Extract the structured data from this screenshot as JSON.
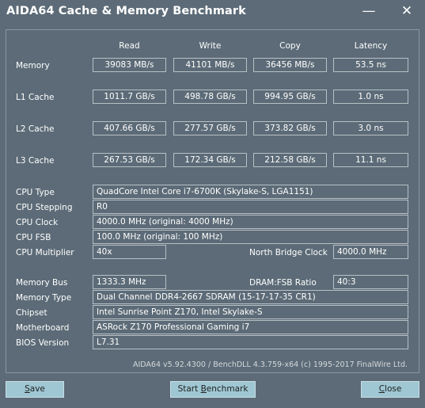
{
  "window": {
    "title": "AIDA64 Cache & Memory Benchmark",
    "minimize_glyph": "—",
    "close_glyph": "✕"
  },
  "headers": {
    "read": "Read",
    "write": "Write",
    "copy": "Copy",
    "latency": "Latency"
  },
  "bench": {
    "memory": {
      "label": "Memory",
      "read": "39083 MB/s",
      "write": "41101 MB/s",
      "copy": "36456 MB/s",
      "latency": "53.5 ns"
    },
    "l1": {
      "label": "L1 Cache",
      "read": "1011.7 GB/s",
      "write": "498.78 GB/s",
      "copy": "994.95 GB/s",
      "latency": "1.0 ns"
    },
    "l2": {
      "label": "L2 Cache",
      "read": "407.66 GB/s",
      "write": "277.57 GB/s",
      "copy": "373.82 GB/s",
      "latency": "3.0 ns"
    },
    "l3": {
      "label": "L3 Cache",
      "read": "267.53 GB/s",
      "write": "172.34 GB/s",
      "copy": "212.58 GB/s",
      "latency": "11.1 ns"
    }
  },
  "cpu": {
    "type_label": "CPU Type",
    "type": "QuadCore Intel Core i7-6700K  (Skylake-S, LGA1151)",
    "stepping_label": "CPU Stepping",
    "stepping": "R0",
    "clock_label": "CPU Clock",
    "clock": "4000.0 MHz  (original: 4000 MHz)",
    "fsb_label": "CPU FSB",
    "fsb": "100.0 MHz  (original: 100 MHz)",
    "multiplier_label": "CPU Multiplier",
    "multiplier": "40x",
    "nb_clock_label": "North Bridge Clock",
    "nb_clock": "4000.0 MHz"
  },
  "system": {
    "bus_label": "Memory Bus",
    "bus": "1333.3 MHz",
    "ratio_label": "DRAM:FSB Ratio",
    "ratio": "40:3",
    "memtype_label": "Memory Type",
    "memtype": "Dual Channel DDR4-2667 SDRAM  (15-17-17-35 CR1)",
    "chipset_label": "Chipset",
    "chipset": "Intel Sunrise Point Z170, Intel Skylake-S",
    "mobo_label": "Motherboard",
    "mobo": "ASRock Z170 Professional Gaming i7",
    "bios_label": "BIOS Version",
    "bios": "L7.31"
  },
  "footer": {
    "text": "AIDA64 v5.92.4300 / BenchDLL 4.3.759-x64  (c) 1995-2017 FinalWire Ltd."
  },
  "buttons": {
    "save_u": "S",
    "save_rest": "ave",
    "start_pre": "Start ",
    "start_u": "B",
    "start_rest": "enchmark",
    "close_u": "C",
    "close_rest": "lose"
  },
  "colors": {
    "background": "#5c6b77",
    "border": "#b8c0c6",
    "button": "#9fc7d3",
    "text": "#ffffff"
  }
}
